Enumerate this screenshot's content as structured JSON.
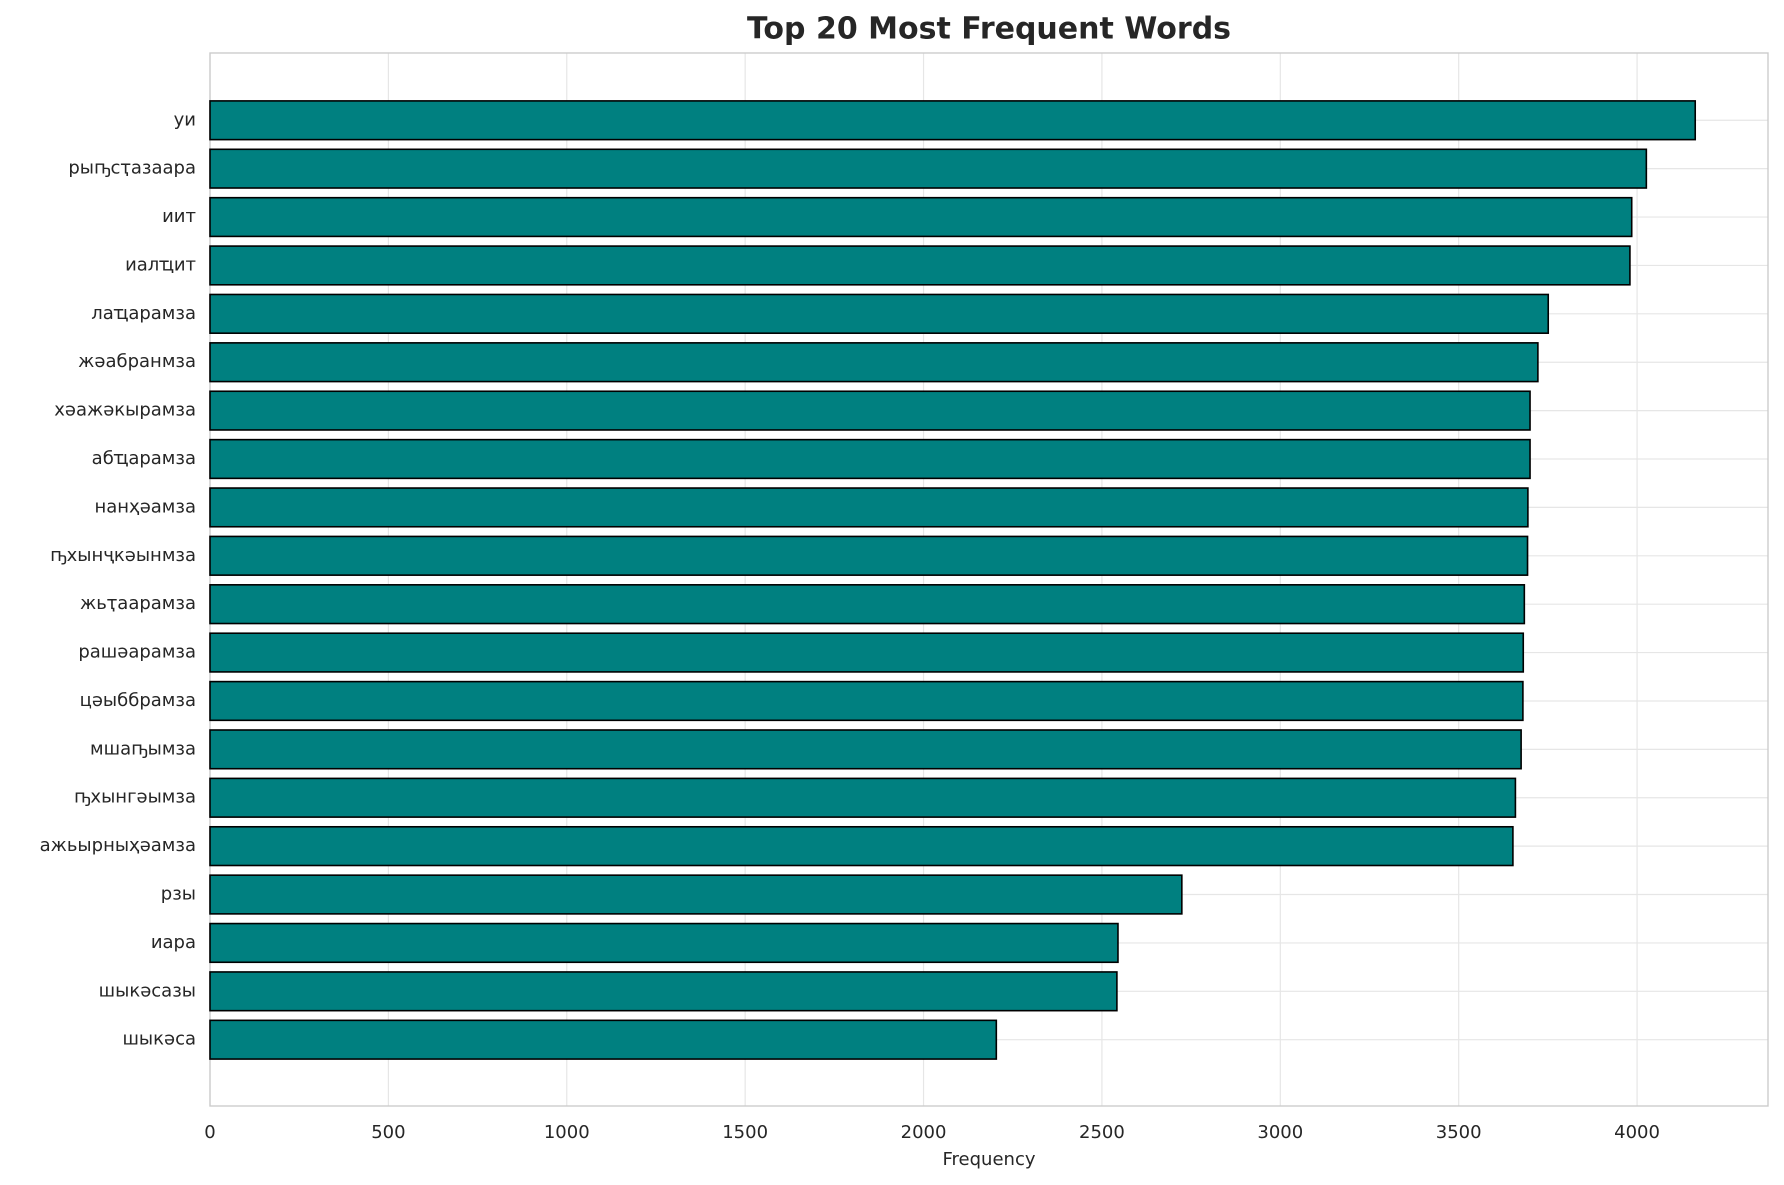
{
  "chart_data": {
    "type": "barh",
    "title": "Top 20 Most Frequent Words",
    "x_label": "Frequency",
    "categories": [
      "уи",
      "рыҧсҭазаара",
      "иит",
      "иалҵит",
      "лаҵарамза",
      "жәабранмза",
      "хәажәкырамза",
      "абҵарамза",
      "нанҳәамза",
      "ҧхынҷкәынмза",
      "жьҭаарамза",
      "рашәарамза",
      "цәыббрамза",
      "мшаҧымза",
      "ҧхынгәымза",
      "ажьырныҳәамза",
      "рзы",
      "иара",
      "шыкәсазы",
      "шыкәса"
    ],
    "values": [
      4163,
      4026,
      3985,
      3980,
      3751,
      3722,
      3700,
      3700,
      3694,
      3693,
      3684,
      3681,
      3680,
      3675,
      3659,
      3652,
      2724,
      2545,
      2542,
      2204
    ],
    "color": "#008080",
    "edge_color": "#000000",
    "xlim": [
      0,
      4367
    ],
    "xticks": [
      0,
      500,
      1000,
      1500,
      2000,
      2500,
      3000,
      3500,
      4000
    ],
    "grid": true
  }
}
